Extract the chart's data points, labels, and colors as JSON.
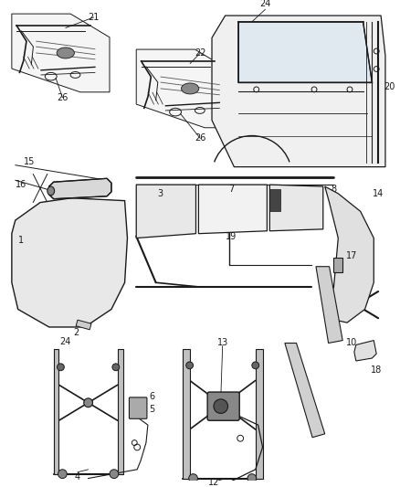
{
  "bg_color": "#ffffff",
  "lc": "#1a1a1a",
  "fs": 7.0,
  "fig_w": 4.38,
  "fig_h": 5.33,
  "dpi": 100
}
